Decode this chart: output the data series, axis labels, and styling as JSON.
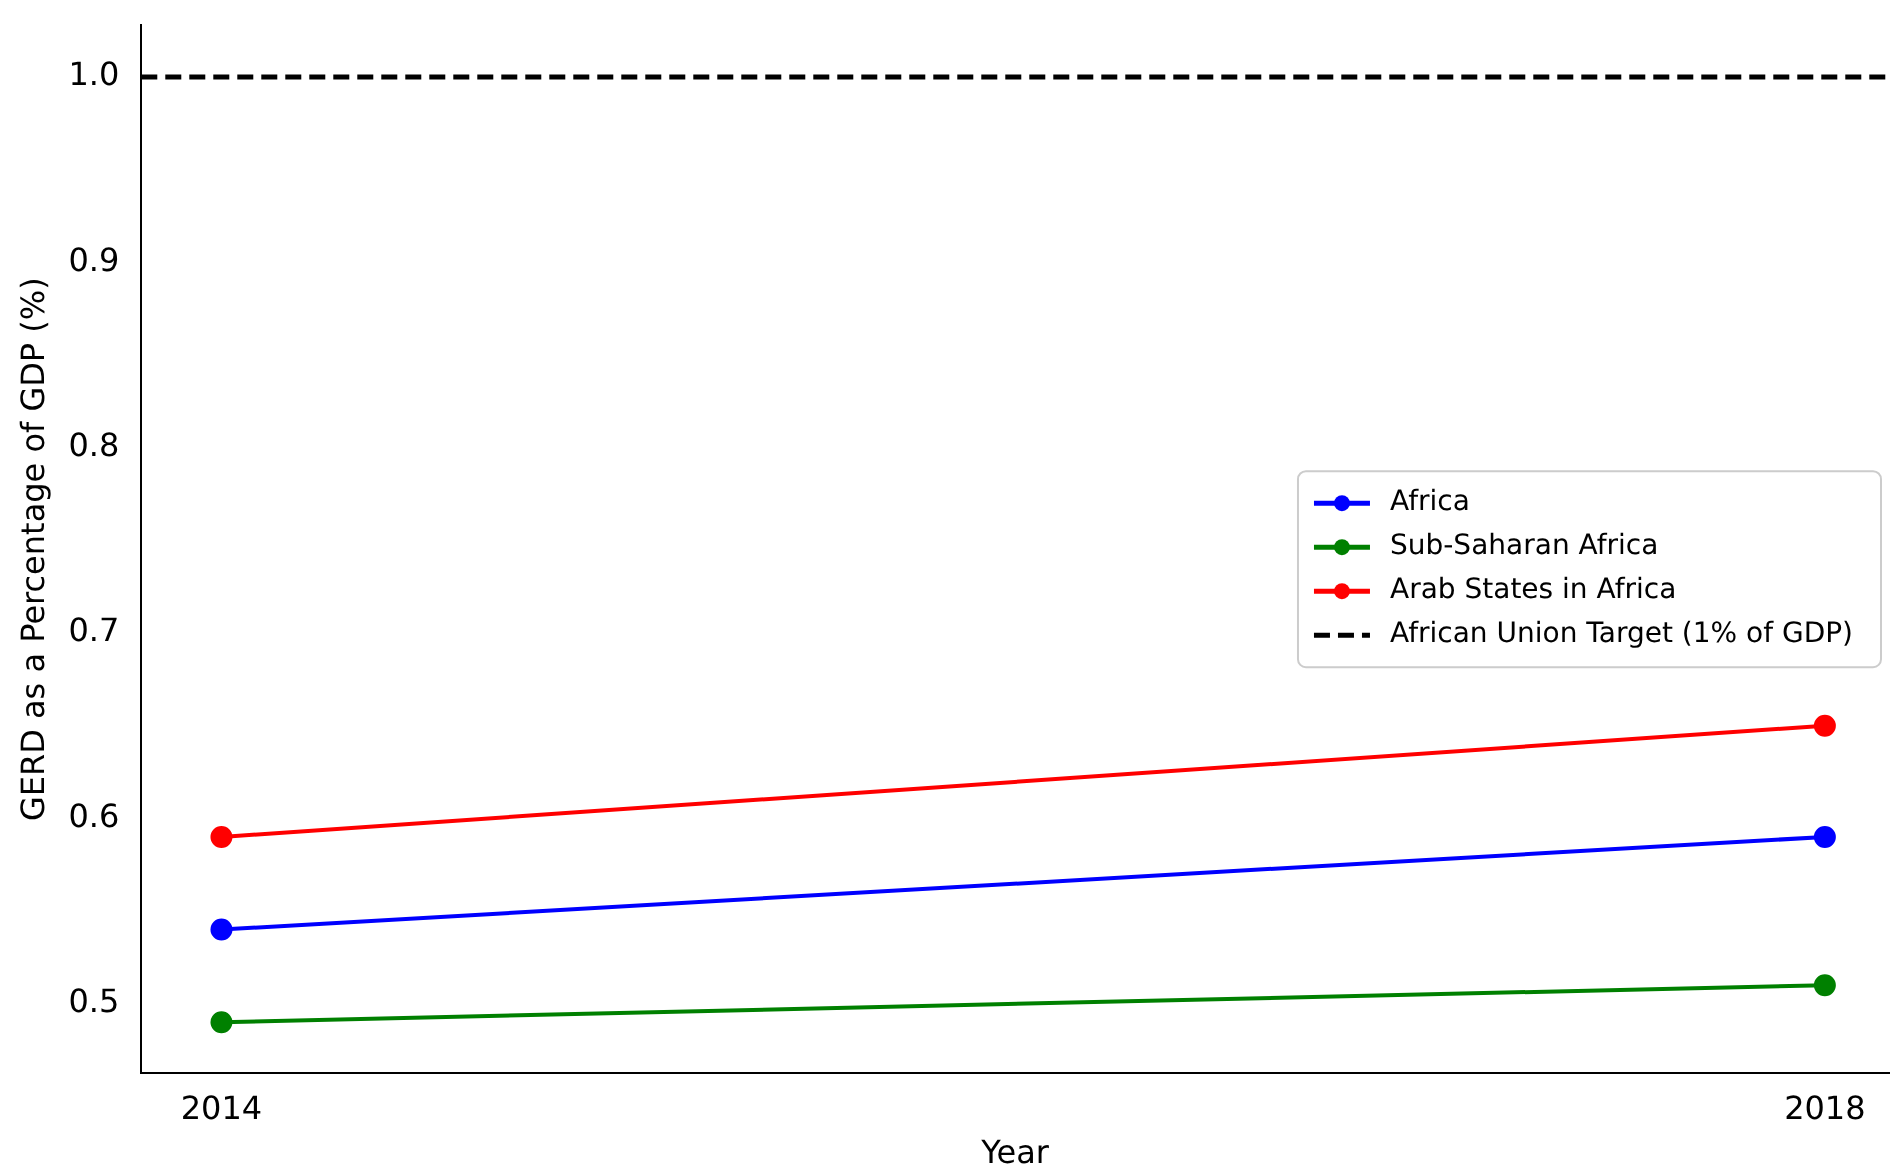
{
  "chart_data": {
    "type": "line",
    "xlabel": "Year",
    "ylabel": "GERD as a Percentage of GDP (%)",
    "x": [
      2014,
      2018
    ],
    "series": [
      {
        "name": "Africa",
        "color": "#0000ff",
        "values": [
          0.54,
          0.59
        ]
      },
      {
        "name": "Sub-Saharan Africa",
        "color": "#008000",
        "values": [
          0.49,
          0.51
        ]
      },
      {
        "name": "Arab States in Africa",
        "color": "#ff0000",
        "values": [
          0.59,
          0.65
        ]
      }
    ],
    "ref_lines": [
      {
        "axis": "y",
        "value": 1.0,
        "label": "African Union Target (1% of GDP)",
        "color": "#000000",
        "line_style": "dashed"
      }
    ],
    "xlim": [
      2013.8,
      2018.16
    ],
    "xticks": [
      2014,
      2018
    ],
    "ylim": [
      0.4625,
      1.028
    ],
    "yticks": [
      0.5,
      0.6,
      0.7,
      0.8,
      0.9,
      {
        "value": 1.0,
        "label": "1.0"
      }
    ],
    "grid": false,
    "legend": "right",
    "marker": "circle",
    "line_style": "solid"
  }
}
